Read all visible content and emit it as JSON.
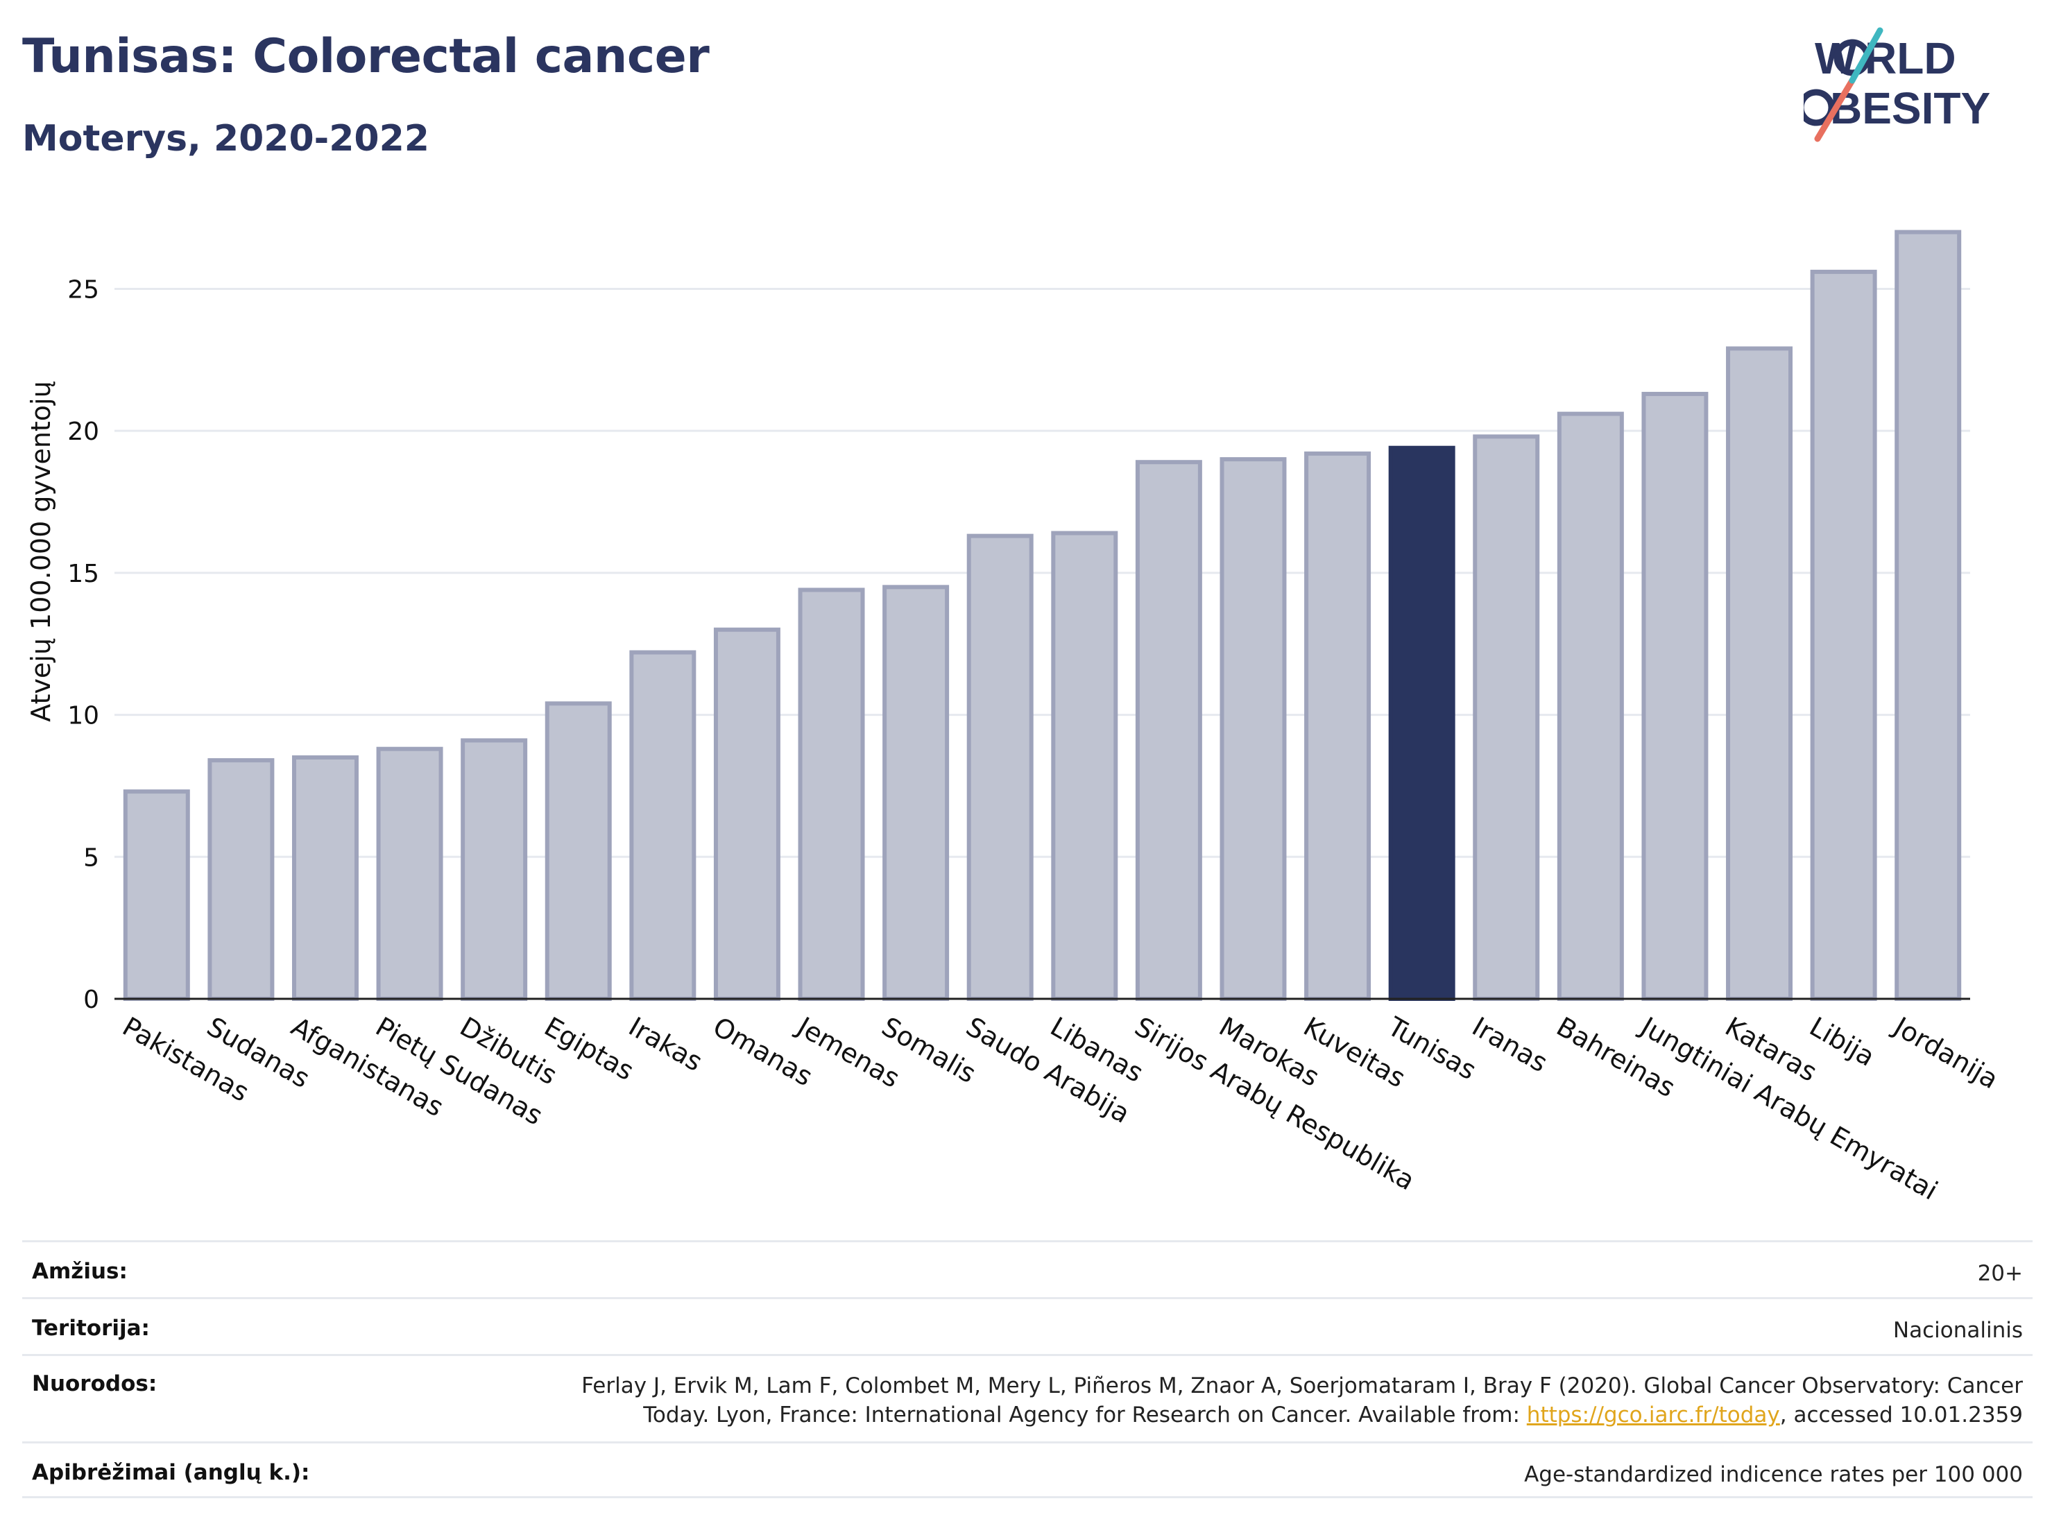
{
  "header": {
    "title": "Tunisas: Colorectal cancer",
    "subtitle": "Moterys, 2020-2022"
  },
  "logo": {
    "line1": "WORLD",
    "line2": "OBESITY"
  },
  "chart_data": {
    "type": "bar",
    "ylabel": "Atvejų 100.000 gyventojų",
    "ylim": [
      0,
      27.6
    ],
    "yticks": [
      0,
      5,
      10,
      15,
      20,
      25
    ],
    "grid": true,
    "categories": [
      "Pakistanas",
      "Sudanas",
      "Afganistanas",
      "Pietų Sudanas",
      "Džibutis",
      "Egiptas",
      "Irakas",
      "Omanas",
      "Jemenas",
      "Somalis",
      "Saudo Arabija",
      "Libanas",
      "Sirijos Arabų Respublika",
      "Marokas",
      "Kuveitas",
      "Tunisas",
      "Iranas",
      "Bahreinas",
      "Jungtiniai Arabų Emyratai",
      "Kataras",
      "Libija",
      "Jordanija"
    ],
    "values": [
      7.3,
      8.4,
      8.5,
      8.8,
      9.1,
      10.4,
      12.2,
      13.0,
      14.4,
      14.5,
      16.3,
      16.4,
      18.9,
      19.0,
      19.2,
      19.4,
      19.8,
      20.6,
      21.3,
      22.9,
      25.6,
      27.0
    ],
    "highlight": "Tunisas",
    "colors": {
      "bar": "#bfc3d1",
      "bar_edge": "#9ea3bb",
      "highlight": "#29355f",
      "grid": "#e6e9ef",
      "axis": "#222222"
    }
  },
  "meta": {
    "age": {
      "label": "Amžius:",
      "value": "20+"
    },
    "territory": {
      "label": "Teritorija:",
      "value": "Nacionalinis"
    },
    "references": {
      "label": "Nuorodos:",
      "line1": "Ferlay J, Ervik M, Lam F, Colombet M, Mery L, Piñeros M, Znaor A, Soerjomataram I, Bray F (2020). Global Cancer Observatory: Cancer",
      "line2_prefix": "Today. Lyon, France: International Agency for Research on Cancer. Available from: ",
      "link": "https://gco.iarc.fr/today",
      "line2_suffix": ", accessed 10.01.2359"
    },
    "definitions": {
      "label": "Apibrėžimai (anglų k.):",
      "value": "Age-standardized indicence rates per 100 000"
    }
  }
}
